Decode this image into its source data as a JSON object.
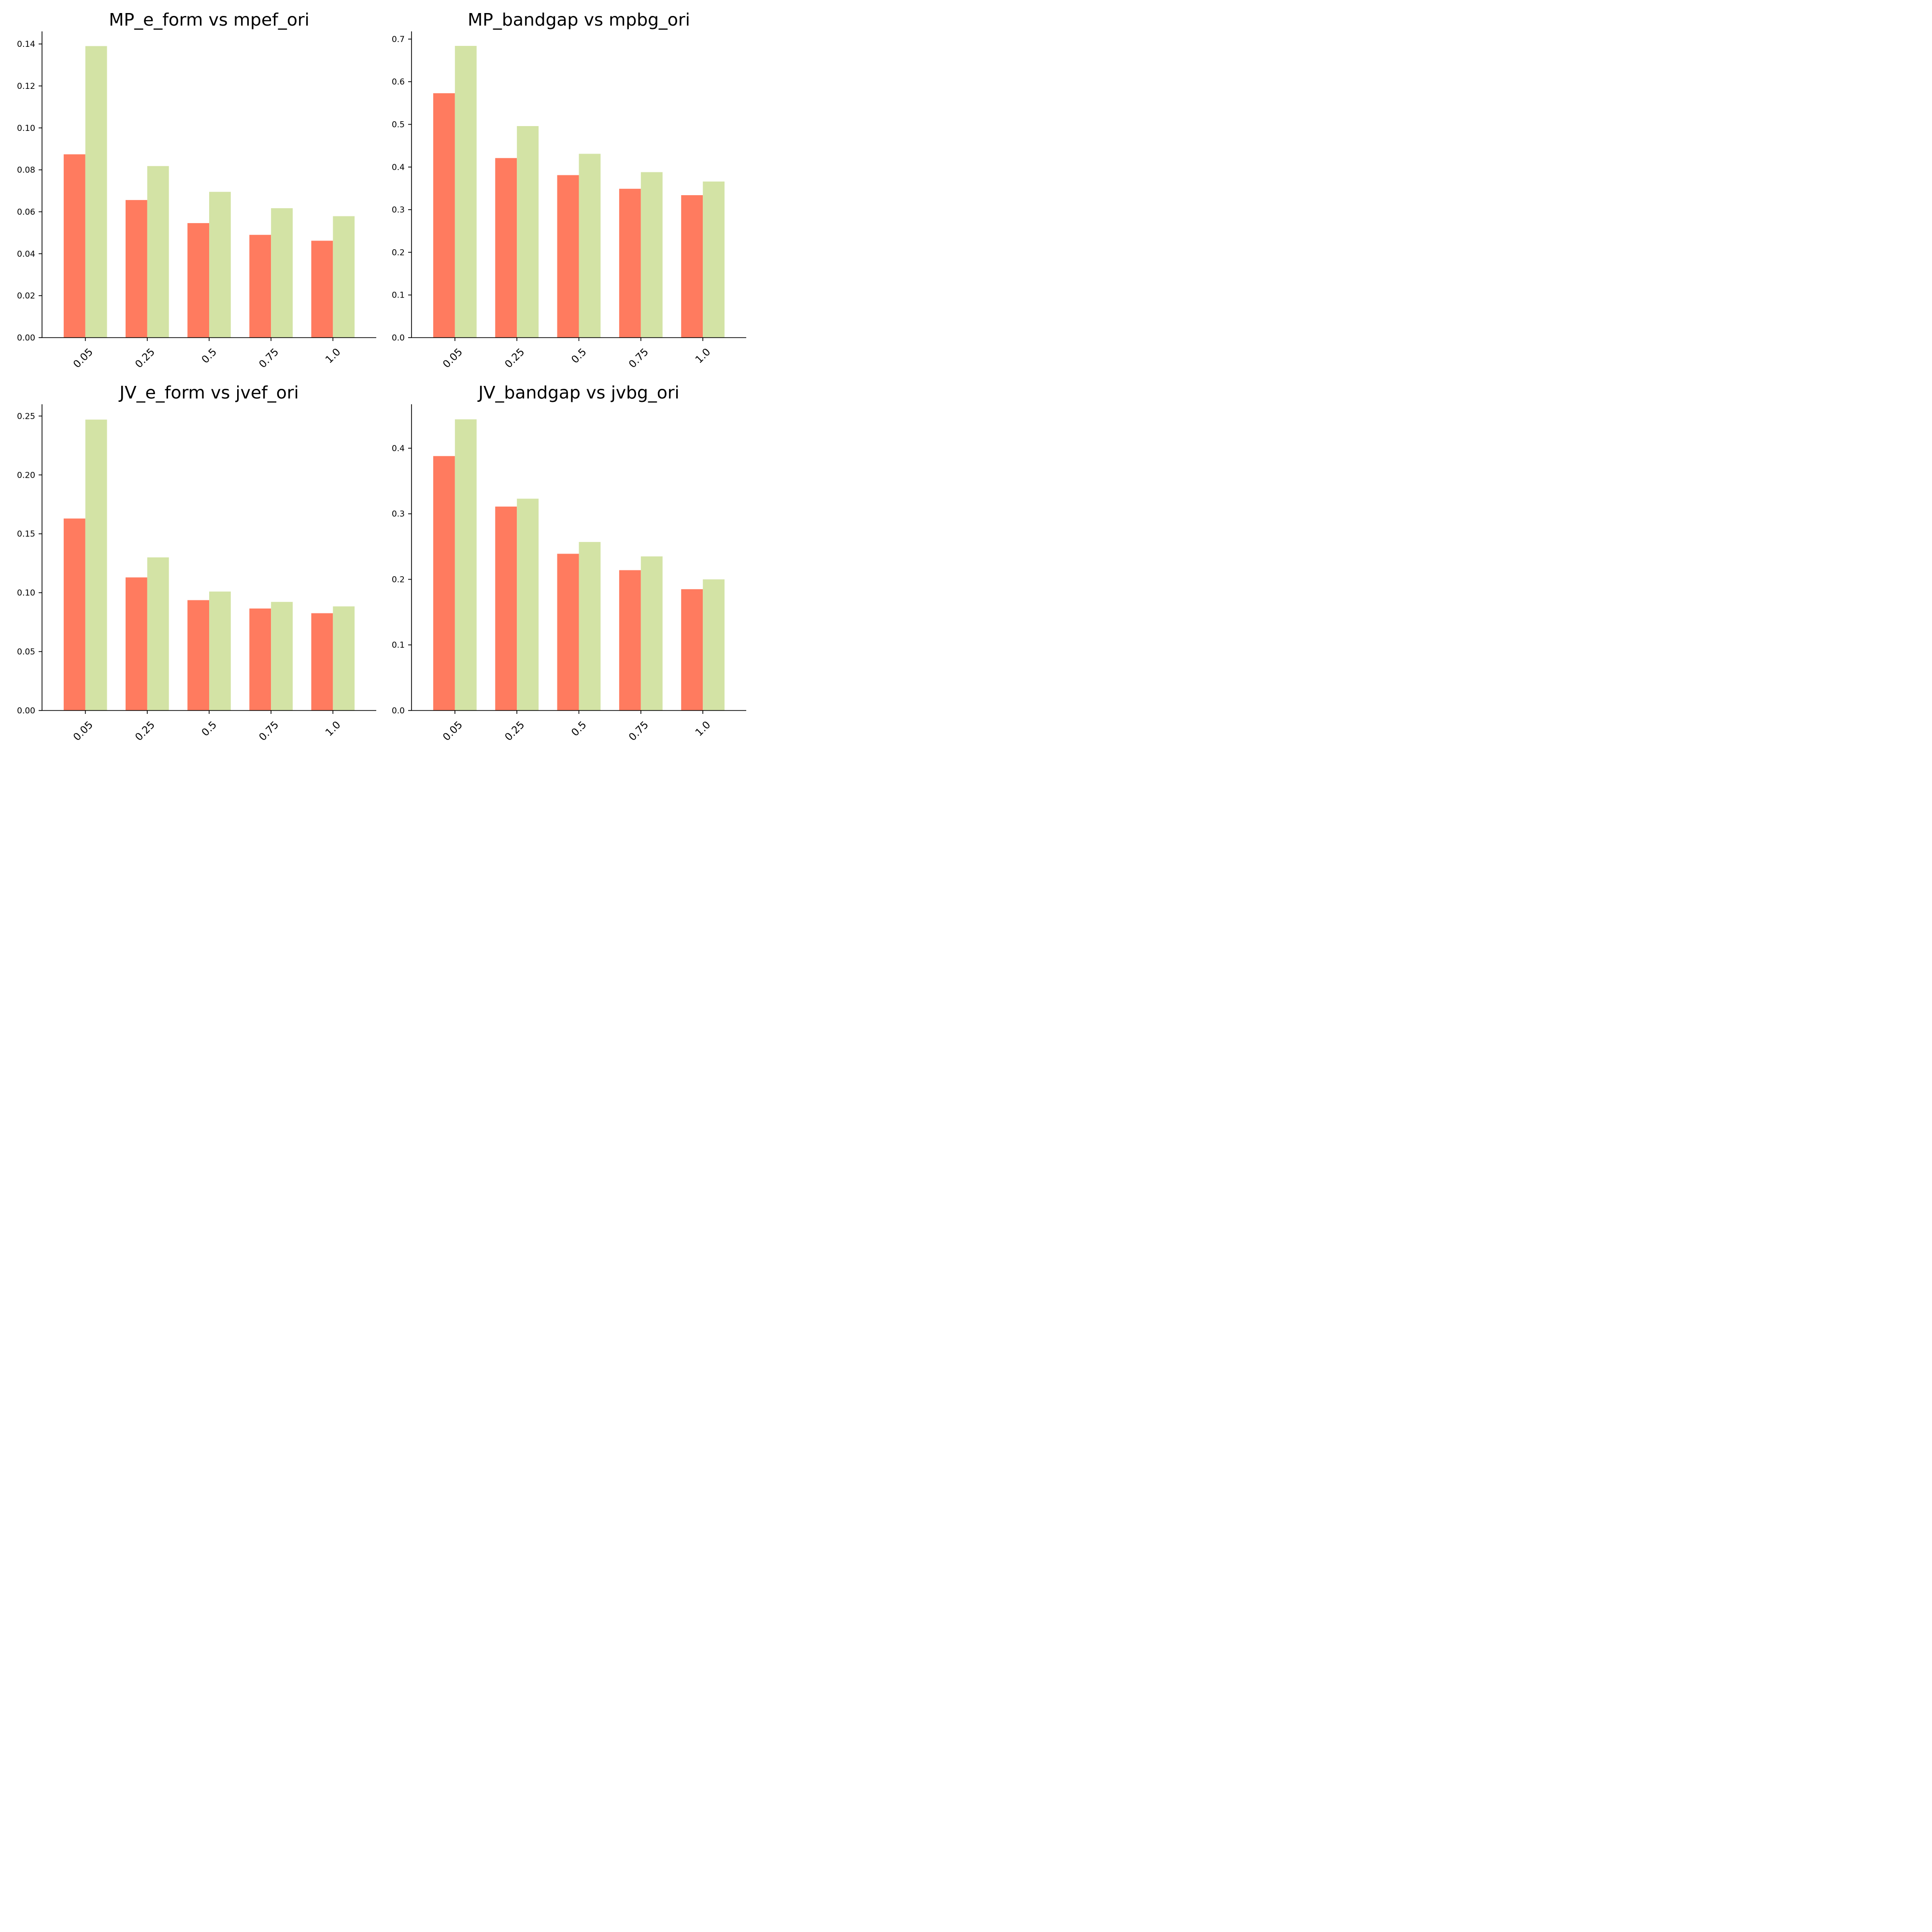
{
  "colors": {
    "series_a": "#ff7b5f",
    "series_b": "#d3e3a5",
    "axis": "#000000"
  },
  "chart_data": [
    {
      "type": "bar",
      "title": "MP_e_form vs mpef_ori",
      "xlabel": "",
      "ylabel": "",
      "categories": [
        "0.05",
        "0.25",
        "0.5",
        "0.75",
        "1.0"
      ],
      "series": [
        {
          "values": [
            0.0874,
            0.0656,
            0.0546,
            0.049,
            0.0462
          ]
        },
        {
          "values": [
            0.139,
            0.0818,
            0.0695,
            0.0617,
            0.0579
          ]
        }
      ],
      "ylim": [
        0,
        0.146
      ],
      "yticks": [
        0.0,
        0.02,
        0.04,
        0.06,
        0.08,
        0.1,
        0.12,
        0.14
      ],
      "ytick_labels": [
        "0.00",
        "0.02",
        "0.04",
        "0.06",
        "0.08",
        "0.10",
        "0.12",
        "0.14"
      ],
      "grid": false,
      "legend": "none"
    },
    {
      "type": "bar",
      "title": "MP_bandgap vs mpbg_ori",
      "xlabel": "",
      "ylabel": "",
      "categories": [
        "0.05",
        "0.25",
        "0.5",
        "0.75",
        "1.0"
      ],
      "series": [
        {
          "values": [
            0.573,
            0.421,
            0.381,
            0.349,
            0.334
          ]
        },
        {
          "values": [
            0.684,
            0.496,
            0.431,
            0.388,
            0.366
          ]
        }
      ],
      "ylim": [
        0,
        0.718
      ],
      "yticks": [
        0.0,
        0.1,
        0.2,
        0.3,
        0.4,
        0.5,
        0.6,
        0.7
      ],
      "ytick_labels": [
        "0.0",
        "0.1",
        "0.2",
        "0.3",
        "0.4",
        "0.5",
        "0.6",
        "0.7"
      ],
      "grid": false,
      "legend": "none"
    },
    {
      "type": "bar",
      "title": "JV_e_form vs jvef_ori",
      "xlabel": "",
      "ylabel": "",
      "categories": [
        "0.05",
        "0.25",
        "0.5",
        "0.75",
        "1.0"
      ],
      "series": [
        {
          "values": [
            0.163,
            0.113,
            0.0937,
            0.0866,
            0.0826
          ]
        },
        {
          "values": [
            0.247,
            0.13,
            0.101,
            0.0922,
            0.0884
          ]
        }
      ],
      "ylim": [
        0,
        0.26
      ],
      "yticks": [
        0.0,
        0.05,
        0.1,
        0.15,
        0.2,
        0.25
      ],
      "ytick_labels": [
        "0.00",
        "0.05",
        "0.10",
        "0.15",
        "0.20",
        "0.25"
      ],
      "grid": false,
      "legend": "none"
    },
    {
      "type": "bar",
      "title": "JV_bandgap vs jvbg_ori",
      "xlabel": "",
      "ylabel": "",
      "categories": [
        "0.05",
        "0.25",
        "0.5",
        "0.75",
        "1.0"
      ],
      "series": [
        {
          "values": [
            0.388,
            0.311,
            0.239,
            0.214,
            0.185
          ]
        },
        {
          "values": [
            0.444,
            0.323,
            0.257,
            0.235,
            0.2
          ]
        }
      ],
      "ylim": [
        0,
        0.467
      ],
      "yticks": [
        0.0,
        0.1,
        0.2,
        0.3,
        0.4
      ],
      "ytick_labels": [
        "0.0",
        "0.1",
        "0.2",
        "0.3",
        "0.4"
      ],
      "grid": false,
      "legend": "none"
    }
  ]
}
